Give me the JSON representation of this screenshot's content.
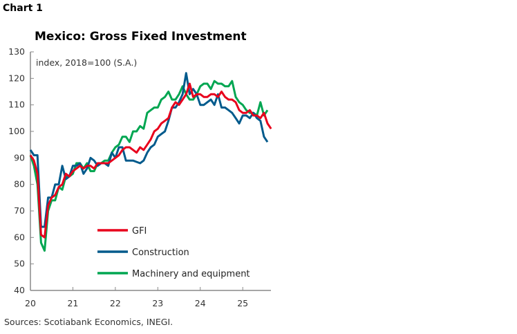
{
  "header": {
    "chart_number": "Chart 1"
  },
  "footer": {
    "sources": "Sources: Scotiabank Economics, INEGI."
  },
  "chart_data": {
    "type": "line",
    "title": "Mexico: Gross Fixed Investment",
    "subtitle": "index, 2018=100 (S.A.)",
    "xlabel": "",
    "ylabel": "",
    "x_start": "2020-01",
    "frequency": "monthly",
    "xticks": [
      "20",
      "21",
      "22",
      "23",
      "24",
      "25"
    ],
    "yticks": [
      40,
      50,
      60,
      70,
      80,
      90,
      100,
      110,
      120,
      130
    ],
    "ylim": [
      40,
      130
    ],
    "grid": false,
    "legend_position": "bottom-center",
    "series": [
      {
        "name": "GFI",
        "color": "#e8001c",
        "values": [
          91,
          89,
          84,
          61,
          60,
          72,
          75,
          76,
          79,
          80,
          84,
          83,
          85,
          86,
          87,
          86,
          87,
          87,
          86,
          88,
          88,
          88,
          88,
          89,
          90,
          91,
          93,
          94,
          94,
          93,
          92,
          94,
          93,
          95,
          97,
          100,
          101,
          103,
          104,
          105,
          109,
          111,
          110,
          112,
          114,
          118,
          113,
          114,
          114,
          113,
          113,
          114,
          114,
          113,
          115,
          113,
          112,
          112,
          111,
          108,
          107,
          107,
          108,
          106,
          106,
          105,
          107,
          103,
          101
        ]
      },
      {
        "name": "Construction",
        "color": "#005a8c",
        "values": [
          93,
          91,
          91,
          64,
          64,
          75,
          75,
          80,
          80,
          87,
          82,
          83,
          87,
          87,
          88,
          84,
          86,
          90,
          89,
          87,
          88,
          88,
          87,
          92,
          90,
          94,
          94,
          89,
          89,
          89,
          88.5,
          88,
          89,
          92,
          94,
          95,
          98,
          99,
          100,
          104,
          109,
          109,
          111,
          114,
          122,
          114,
          116,
          114,
          110,
          110,
          111,
          112,
          110,
          114,
          109,
          109,
          108,
          107,
          105,
          103,
          106,
          106,
          105,
          107,
          105,
          104,
          98,
          96
        ]
      },
      {
        "name": "Machinery and equipment",
        "color": "#00a651",
        "values": [
          91,
          87,
          80,
          58,
          55,
          70,
          74,
          74,
          79,
          78,
          83,
          83,
          84,
          88,
          88,
          86,
          88,
          85,
          85,
          88,
          88,
          89,
          89,
          92,
          94,
          95,
          98,
          98,
          96,
          100,
          100,
          102,
          101,
          107,
          108,
          109,
          109,
          112,
          113,
          115,
          112,
          112,
          114,
          117,
          114,
          112,
          112,
          114,
          117,
          118,
          118,
          116,
          119,
          118,
          118,
          117,
          117,
          119,
          113,
          111,
          110,
          108,
          107,
          107,
          106,
          111,
          106,
          108
        ]
      }
    ]
  }
}
